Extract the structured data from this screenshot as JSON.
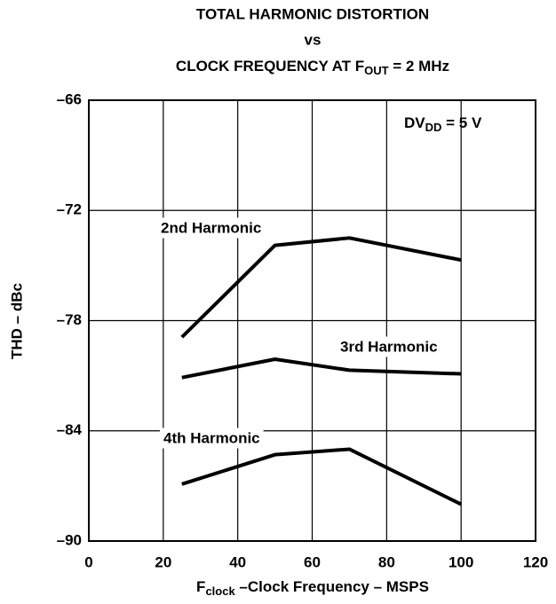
{
  "chart_data": {
    "type": "line",
    "title": {
      "line1": "TOTAL HARMONIC DISTORTION",
      "line2": "vs",
      "line3": "CLOCK FREQUENCY AT F",
      "line3_sub": "OUT",
      "line3_end": " = 2 MHz"
    },
    "x_label": {
      "main": "F",
      "sub": "clock",
      "end": " –Clock Frequency – MSPS"
    },
    "y_label": "THD – dBc",
    "annotation": {
      "main": "DV",
      "sub": "DD",
      "end": " = 5 V"
    },
    "x": [
      25,
      50,
      70,
      100
    ],
    "series": [
      {
        "name": "2nd Harmonic",
        "color": "#000000",
        "values": [
          -78.9,
          -73.9,
          -73.5,
          -74.7
        ]
      },
      {
        "name": "3rd Harmonic",
        "color": "#000000",
        "values": [
          -81.1,
          -80.1,
          -80.7,
          -80.9
        ]
      },
      {
        "name": "4th Harmonic",
        "color": "#000000",
        "values": [
          -86.9,
          -85.3,
          -85.0,
          -88.0
        ]
      }
    ],
    "xlim": [
      0,
      120
    ],
    "xticks": [
      0,
      20,
      40,
      60,
      80,
      100,
      120
    ],
    "ylim": [
      -90,
      -66
    ],
    "yticks": [
      {
        "value": -90,
        "label": "–90"
      },
      {
        "value": -84,
        "label": "–84"
      },
      {
        "value": -78,
        "label": "–78"
      },
      {
        "value": -72,
        "label": "–72"
      },
      {
        "value": -66,
        "label": "–66"
      }
    ],
    "grid": true
  }
}
